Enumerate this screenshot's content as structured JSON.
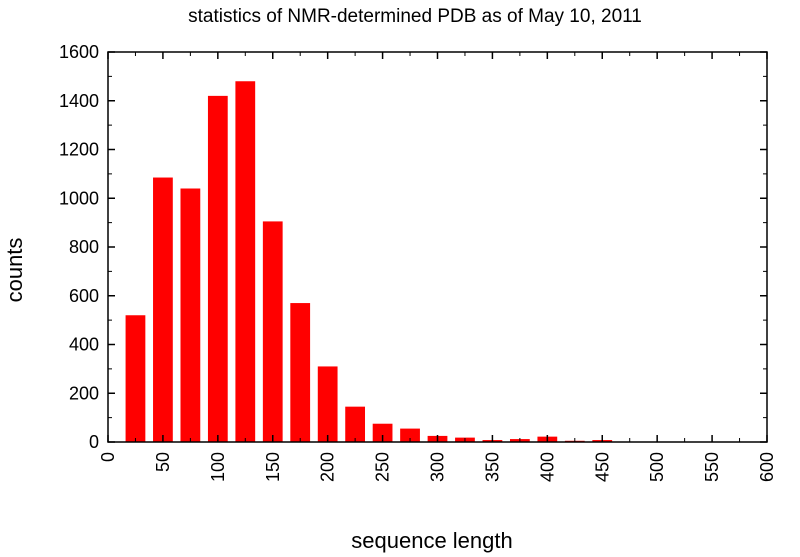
{
  "chart_data": {
    "type": "bar",
    "title": "statistics of NMR-determined PDB as of May 10, 2011",
    "xlabel": "sequence length",
    "ylabel": "counts",
    "xlim": [
      0,
      600
    ],
    "ylim": [
      0,
      1600
    ],
    "xticks": [
      "0",
      "50",
      "100",
      "150",
      "200",
      "250",
      "300",
      "350",
      "400",
      "450",
      "500",
      "550",
      "600"
    ],
    "yticks": [
      "0",
      "200",
      "400",
      "600",
      "800",
      "1000",
      "1200",
      "1400",
      "1600"
    ],
    "bin_width": 25,
    "bar_width": 18,
    "x": [
      25,
      50,
      75,
      100,
      125,
      150,
      175,
      200,
      225,
      250,
      275,
      300,
      325,
      350,
      375,
      400,
      425,
      450
    ],
    "values": [
      520,
      1085,
      1040,
      1420,
      1480,
      905,
      570,
      310,
      145,
      75,
      55,
      25,
      18,
      8,
      12,
      22,
      5,
      8
    ],
    "color": "#ff0000",
    "grid": false
  }
}
